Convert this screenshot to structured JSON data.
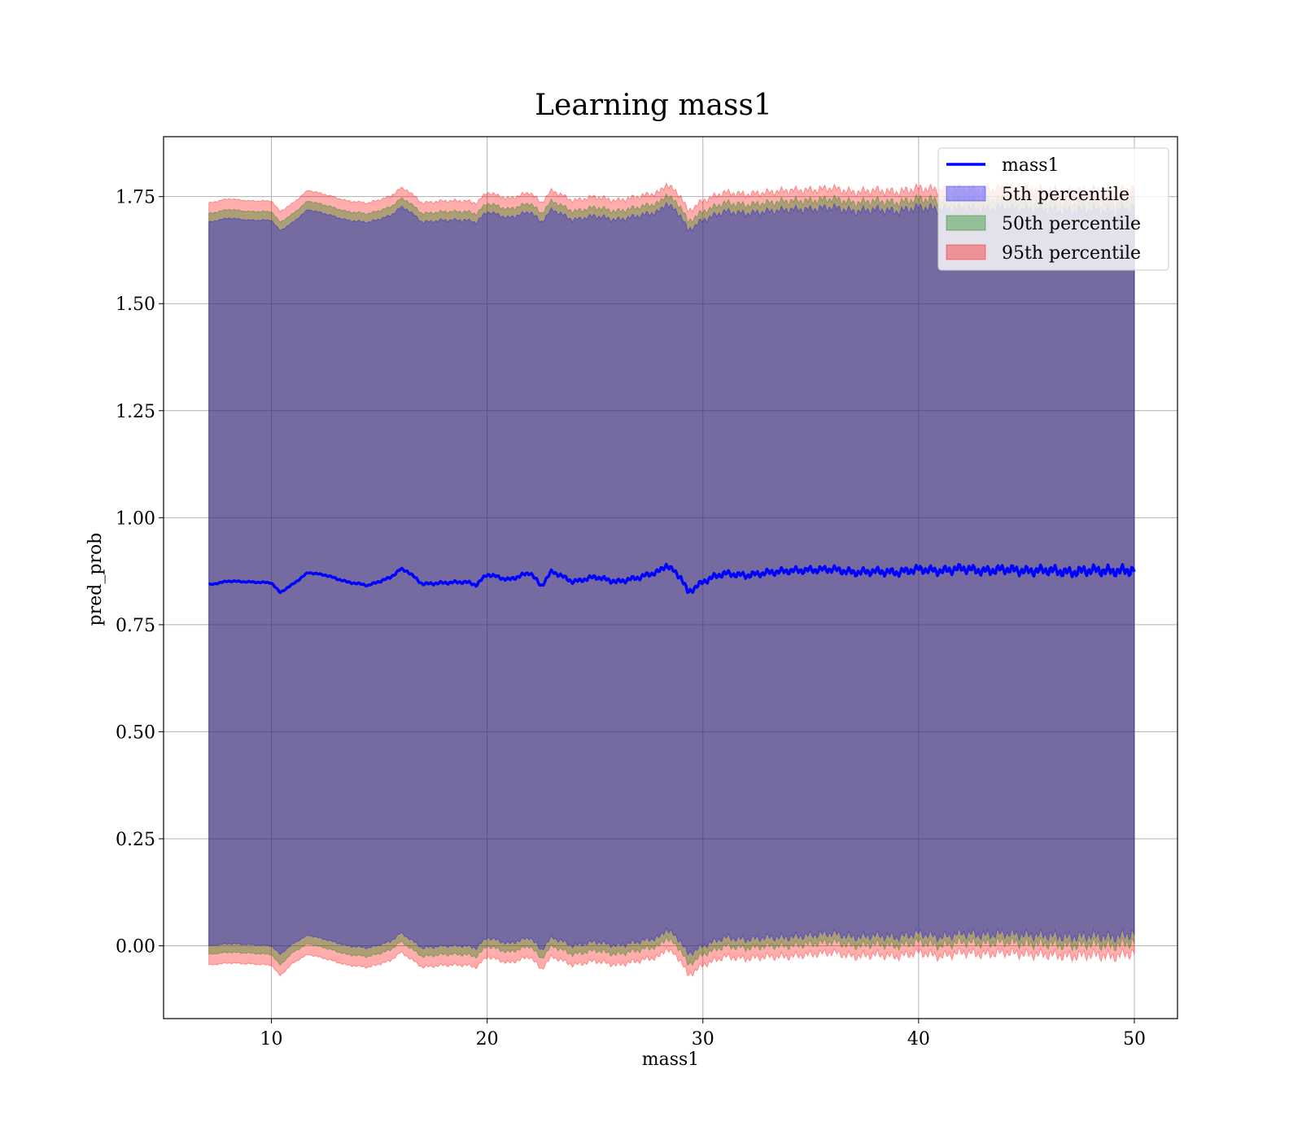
{
  "chart_data": {
    "type": "area",
    "title": "Learning mass1",
    "xlabel": "mass1",
    "ylabel": "pred_prob",
    "xlim": [
      5,
      52
    ],
    "ylim": [
      -0.17,
      1.89
    ],
    "x_ticks": [
      10,
      20,
      30,
      40,
      50
    ],
    "x_tick_labels": [
      "10",
      "20",
      "30",
      "40",
      "50"
    ],
    "y_ticks": [
      0.0,
      0.25,
      0.5,
      0.75,
      1.0,
      1.25,
      1.5,
      1.75
    ],
    "y_tick_labels": [
      "0.00",
      "0.25",
      "0.50",
      "0.75",
      "1.00",
      "1.25",
      "1.50",
      "1.75"
    ],
    "grid": true,
    "legend_position": "top-right",
    "x_range": [
      7.1,
      50.0
    ],
    "line": {
      "name": "mass1",
      "color": "#0000ff",
      "x": [
        7.1,
        8,
        9,
        10,
        10.4,
        11,
        11.7,
        12.5,
        13.5,
        14.5,
        15.5,
        16,
        16.3,
        17,
        18,
        19,
        19.5,
        20,
        21,
        22,
        22.5,
        23,
        24,
        25,
        26,
        27,
        28,
        28.3,
        29,
        29.3,
        30,
        30.5,
        31,
        32,
        33,
        34,
        35,
        36,
        37,
        38,
        39,
        40,
        41,
        42,
        43,
        44,
        45,
        46,
        47,
        48,
        49,
        50
      ],
      "y": [
        0.843,
        0.852,
        0.85,
        0.848,
        0.825,
        0.845,
        0.872,
        0.866,
        0.85,
        0.842,
        0.86,
        0.88,
        0.875,
        0.845,
        0.848,
        0.85,
        0.843,
        0.868,
        0.855,
        0.872,
        0.84,
        0.875,
        0.85,
        0.862,
        0.85,
        0.86,
        0.875,
        0.89,
        0.86,
        0.825,
        0.85,
        0.862,
        0.87,
        0.865,
        0.872,
        0.876,
        0.878,
        0.88,
        0.872,
        0.875,
        0.872,
        0.88,
        0.875,
        0.882,
        0.875,
        0.88,
        0.875,
        0.878,
        0.872,
        0.878,
        0.875,
        0.878
      ]
    },
    "series": [
      {
        "name": "5th percentile",
        "color": "#0000ff",
        "lower": [
          0.0,
          0.005,
          0.003,
          0.0,
          -0.02,
          0.005,
          0.025,
          0.015,
          0.0,
          -0.005,
          0.01,
          0.03,
          0.02,
          -0.005,
          0.0,
          0.0,
          -0.005,
          0.02,
          0.005,
          0.02,
          -0.01,
          0.02,
          0.0,
          0.01,
          0.0,
          0.01,
          0.02,
          0.04,
          0.01,
          -0.02,
          0.0,
          0.01,
          0.02,
          0.015,
          0.02,
          0.02,
          0.025,
          0.03,
          0.02,
          0.025,
          0.02,
          0.03,
          0.02,
          0.03,
          0.025,
          0.03,
          0.025,
          0.025,
          0.02,
          0.025,
          0.02,
          0.03
        ],
        "upper": [
          1.69,
          1.7,
          1.695,
          1.695,
          1.67,
          1.69,
          1.72,
          1.71,
          1.695,
          1.69,
          1.705,
          1.725,
          1.72,
          1.69,
          1.695,
          1.695,
          1.69,
          1.715,
          1.7,
          1.715,
          1.69,
          1.72,
          1.695,
          1.705,
          1.695,
          1.705,
          1.715,
          1.735,
          1.705,
          1.67,
          1.695,
          1.705,
          1.715,
          1.71,
          1.715,
          1.72,
          1.72,
          1.725,
          1.715,
          1.72,
          1.715,
          1.725,
          1.72,
          1.725,
          1.72,
          1.725,
          1.72,
          1.72,
          1.715,
          1.72,
          1.715,
          1.725
        ]
      },
      {
        "name": "50th percentile",
        "color": "#008000",
        "lower": [
          -0.02,
          -0.015,
          -0.017,
          -0.02,
          -0.045,
          -0.015,
          0.005,
          -0.005,
          -0.02,
          -0.025,
          -0.01,
          0.01,
          0.0,
          -0.025,
          -0.02,
          -0.02,
          -0.025,
          0.0,
          -0.015,
          0.0,
          -0.03,
          0.0,
          -0.02,
          -0.01,
          -0.02,
          -0.01,
          0.0,
          0.02,
          -0.01,
          -0.045,
          -0.02,
          -0.01,
          0.0,
          -0.005,
          0.0,
          0.0,
          0.005,
          0.01,
          0.0,
          0.005,
          0.0,
          0.01,
          0.0,
          0.01,
          0.005,
          0.01,
          0.005,
          0.005,
          0.0,
          0.005,
          0.0,
          0.01
        ],
        "upper": [
          1.71,
          1.72,
          1.715,
          1.715,
          1.69,
          1.71,
          1.74,
          1.73,
          1.715,
          1.71,
          1.725,
          1.745,
          1.74,
          1.71,
          1.715,
          1.715,
          1.71,
          1.735,
          1.72,
          1.735,
          1.71,
          1.74,
          1.715,
          1.725,
          1.715,
          1.725,
          1.735,
          1.755,
          1.725,
          1.69,
          1.715,
          1.725,
          1.735,
          1.73,
          1.735,
          1.74,
          1.74,
          1.745,
          1.735,
          1.74,
          1.735,
          1.745,
          1.74,
          1.745,
          1.74,
          1.745,
          1.74,
          1.74,
          1.735,
          1.74,
          1.735,
          1.745
        ]
      },
      {
        "name": "95th percentile",
        "color": "#ff0000",
        "lower": [
          -0.045,
          -0.04,
          -0.042,
          -0.045,
          -0.07,
          -0.04,
          -0.02,
          -0.03,
          -0.045,
          -0.05,
          -0.035,
          -0.015,
          -0.025,
          -0.05,
          -0.045,
          -0.045,
          -0.05,
          -0.025,
          -0.04,
          -0.025,
          -0.055,
          -0.025,
          -0.045,
          -0.035,
          -0.045,
          -0.035,
          -0.025,
          -0.005,
          -0.035,
          -0.07,
          -0.045,
          -0.035,
          -0.025,
          -0.03,
          -0.025,
          -0.025,
          -0.02,
          -0.015,
          -0.025,
          -0.02,
          -0.025,
          -0.015,
          -0.025,
          -0.015,
          -0.02,
          -0.015,
          -0.02,
          -0.02,
          -0.025,
          -0.02,
          -0.025,
          -0.015
        ],
        "upper": [
          1.735,
          1.745,
          1.74,
          1.74,
          1.715,
          1.735,
          1.765,
          1.755,
          1.74,
          1.735,
          1.75,
          1.77,
          1.765,
          1.735,
          1.74,
          1.74,
          1.735,
          1.76,
          1.745,
          1.76,
          1.735,
          1.765,
          1.74,
          1.75,
          1.74,
          1.75,
          1.76,
          1.78,
          1.75,
          1.715,
          1.74,
          1.75,
          1.76,
          1.755,
          1.76,
          1.765,
          1.765,
          1.77,
          1.76,
          1.765,
          1.76,
          1.77,
          1.765,
          1.77,
          1.765,
          1.77,
          1.765,
          1.765,
          1.76,
          1.765,
          1.76,
          1.77
        ]
      }
    ]
  }
}
